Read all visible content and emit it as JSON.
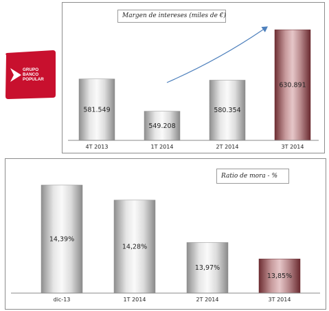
{
  "logo": {
    "lines": [
      "GRUPO",
      "BANCO",
      "POPULAR"
    ],
    "color": "#c8102e"
  },
  "chart_data": [
    {
      "type": "bar",
      "title": "Margen de intereses (miles de €)",
      "categories": [
        "4T 2013",
        "1T 2014",
        "2T 2014",
        "3T 2014"
      ],
      "values": [
        581549,
        549208,
        580354,
        630891
      ],
      "value_labels": [
        "581.549",
        "549.208",
        "580.354",
        "630.891"
      ],
      "ylim": [
        520000,
        640000
      ],
      "highlight_index": 3,
      "trend_arrow": true,
      "grid": false
    },
    {
      "type": "bar",
      "title": "Ratio de mora - %",
      "categories": [
        "dic-13",
        "1T 2014",
        "2T 2014",
        "3T 2014"
      ],
      "values": [
        14.39,
        14.28,
        13.97,
        13.85
      ],
      "value_labels": [
        "14,39%",
        "14,28%",
        "13,97%",
        "13,85%"
      ],
      "ylim": [
        13.6,
        14.43
      ],
      "highlight_index": 3,
      "grid": false
    }
  ]
}
